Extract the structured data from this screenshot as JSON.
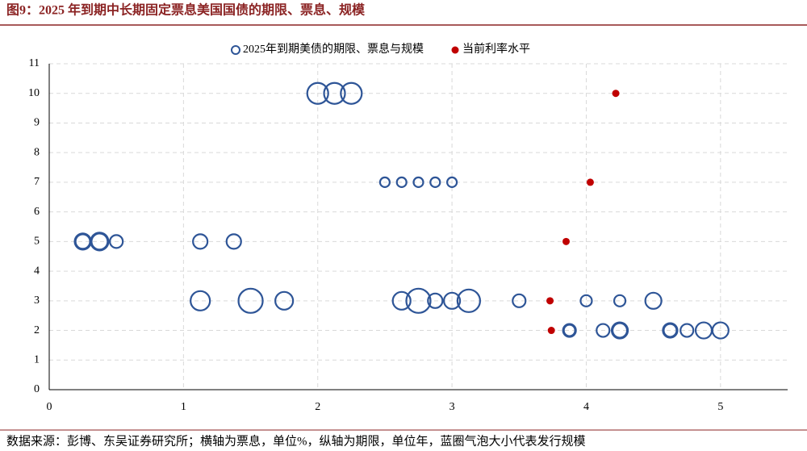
{
  "chart_data": {
    "type": "scatter",
    "title": "图9：2025 年到期中长期固定票息美国国债的期限、票息、规模",
    "footer": "数据来源：彭博、东吴证券研究所；横轴为票息，单位%，纵轴为期限，单位年，蓝圈气泡大小代表发行规模",
    "xlim": [
      0,
      5.5
    ],
    "ylim": [
      0,
      11
    ],
    "xticks": [
      0,
      1,
      2,
      3,
      4,
      5
    ],
    "yticks": [
      0,
      1,
      2,
      3,
      4,
      5,
      6,
      7,
      8,
      9,
      10,
      11
    ],
    "grid": true,
    "legend": "top",
    "series": [
      {
        "name": "2025年到期美债的期限、票息与规模",
        "color": "#2e5597",
        "marker": "bubble",
        "x": [
          2.0,
          2.125,
          2.25,
          2.5,
          2.625,
          2.75,
          2.875,
          3.0,
          0.25,
          0.25,
          0.375,
          0.375,
          0.5,
          1.125,
          1.375,
          1.125,
          1.5,
          1.75,
          2.625,
          2.75,
          2.875,
          3.0,
          3.125,
          3.5,
          4.0,
          4.25,
          4.5,
          3.875,
          3.875,
          4.125,
          4.25,
          4.25,
          4.625,
          4.625,
          4.75,
          4.875,
          5.0
        ],
        "values": [
          10,
          10,
          10,
          7,
          7,
          7,
          7,
          7,
          5,
          5,
          5,
          5,
          5,
          5,
          5,
          3,
          3,
          3,
          3,
          3,
          3,
          3,
          3,
          3,
          3,
          3,
          3,
          2,
          2,
          2,
          2,
          2,
          2,
          2,
          2,
          2,
          2
        ],
        "sizes": [
          13,
          13,
          13,
          6,
          6,
          6,
          6,
          6,
          10,
          9,
          11,
          10,
          8,
          9,
          9,
          12,
          15,
          11,
          11,
          15,
          9,
          10,
          14,
          8,
          7,
          7,
          10,
          8,
          7,
          8,
          10,
          9,
          9,
          8,
          8,
          10,
          10
        ]
      },
      {
        "name": "当前利率水平",
        "color": "#c00000",
        "marker": "dot",
        "x": [
          4.22,
          4.03,
          3.85,
          3.73,
          3.74
        ],
        "values": [
          10,
          7,
          5,
          3,
          2
        ]
      }
    ]
  }
}
